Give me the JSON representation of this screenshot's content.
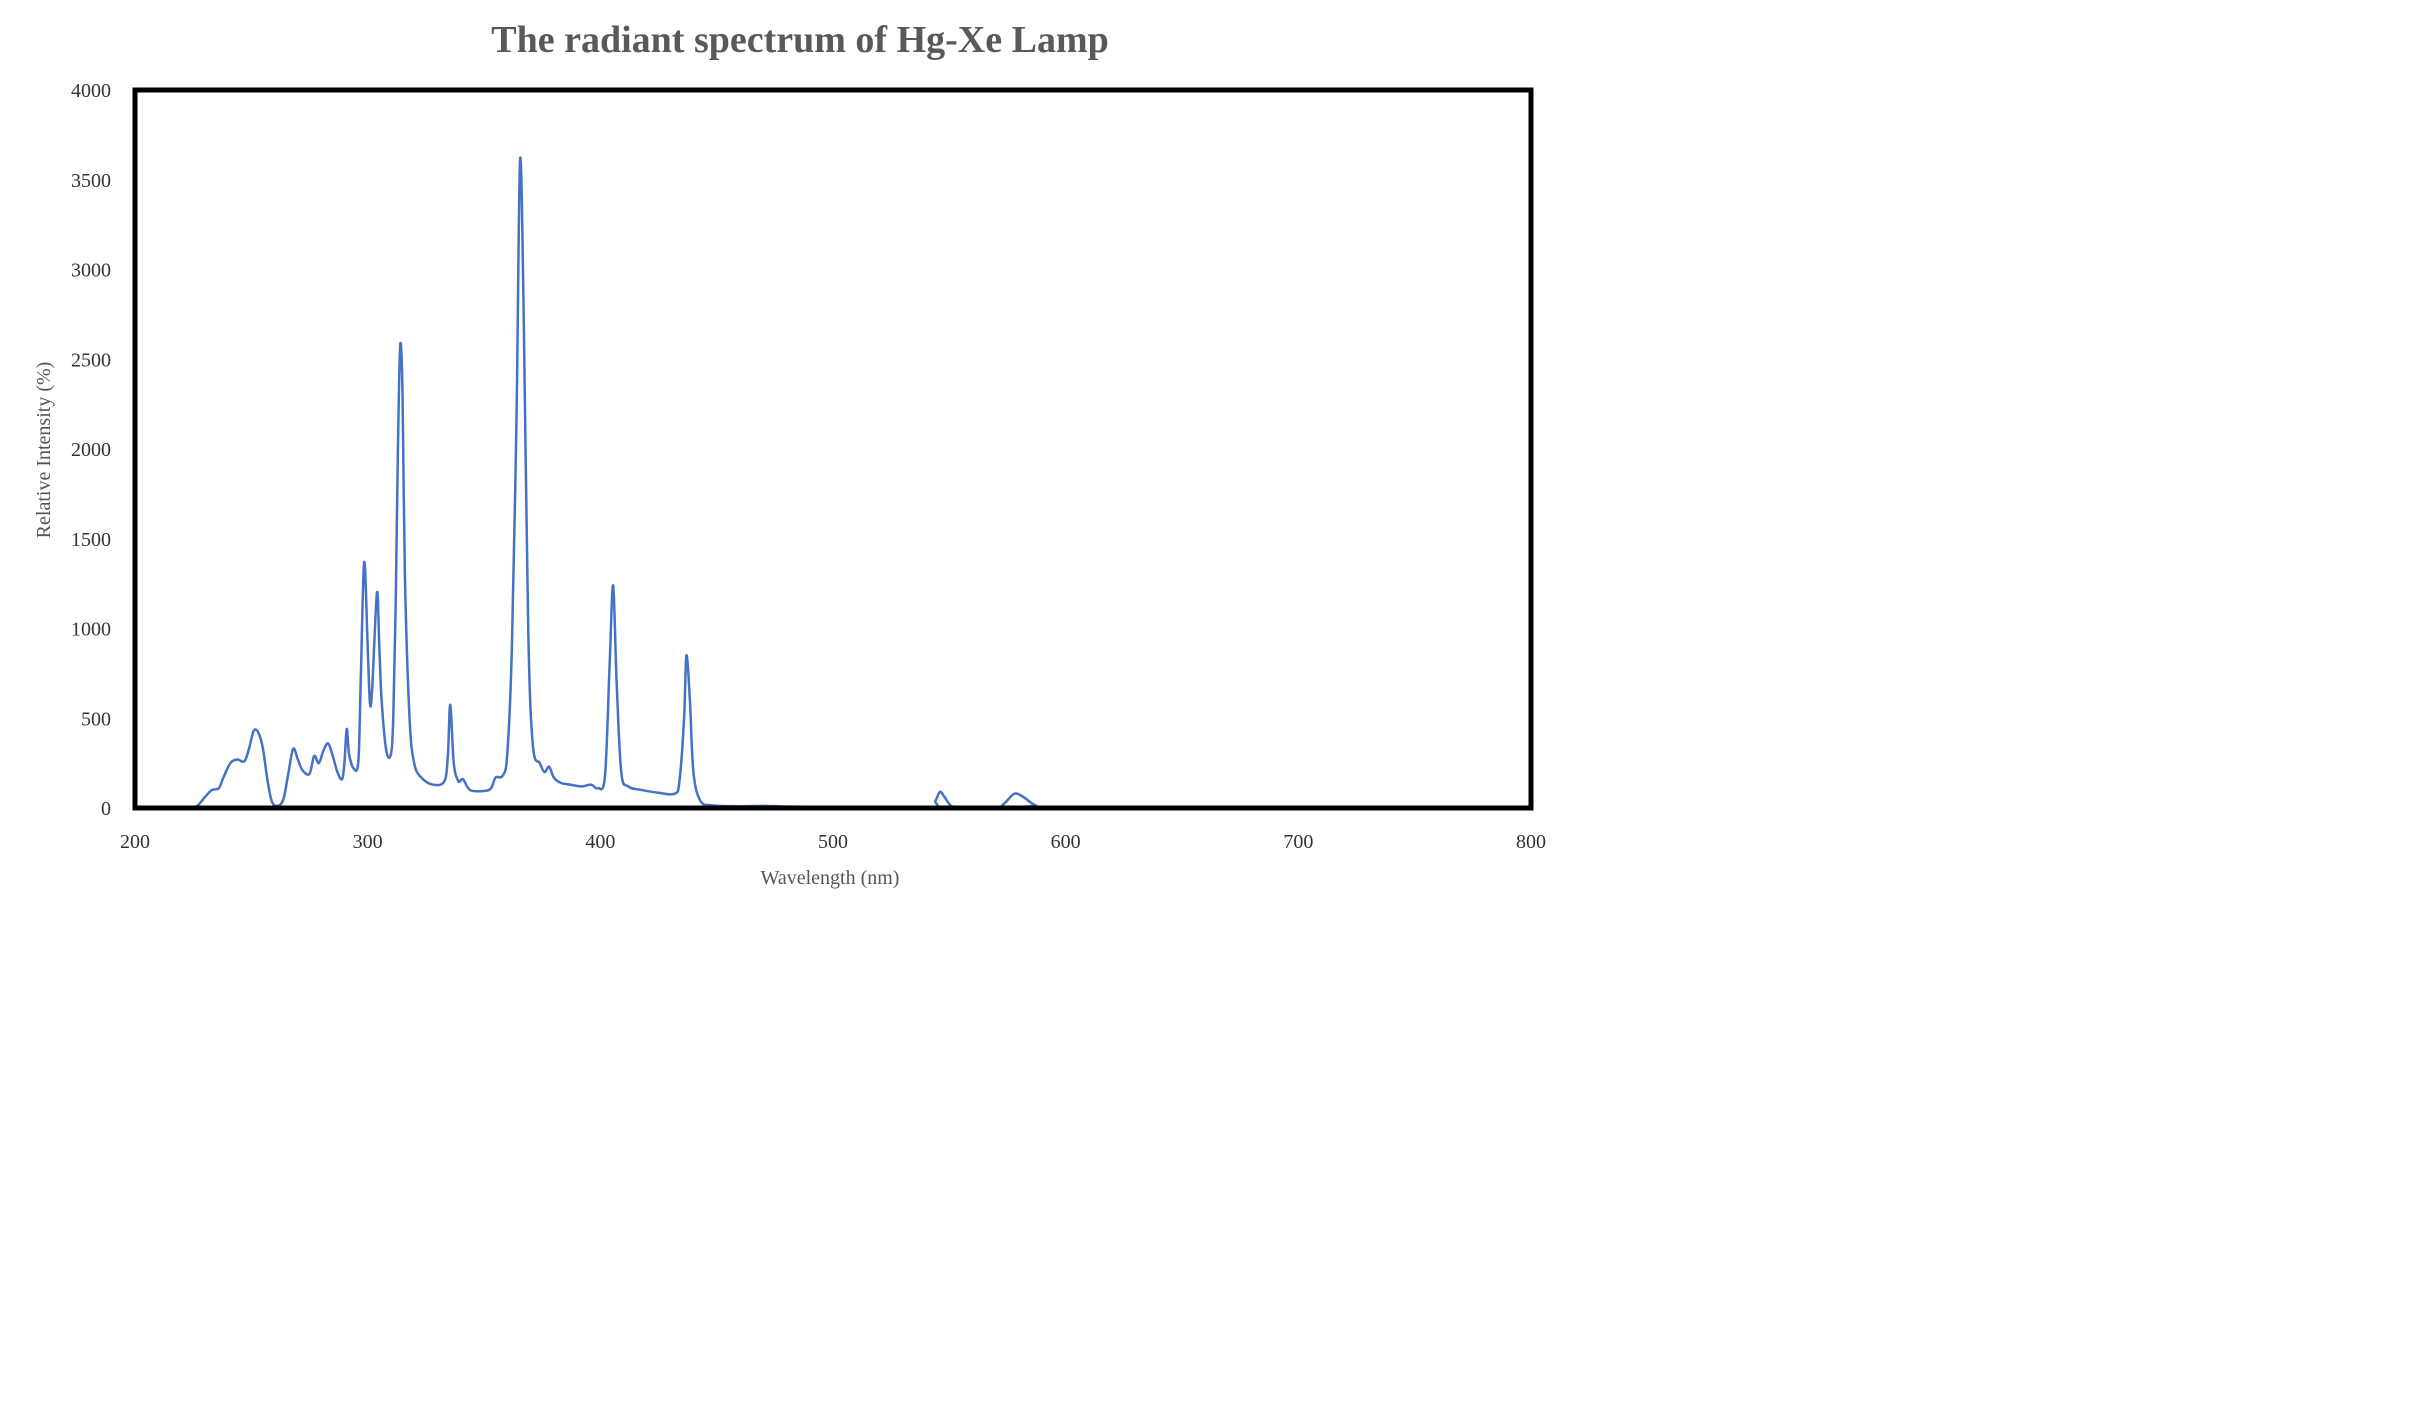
{
  "chart_data": {
    "type": "line",
    "title": "The radiant spectrum of Hg-Xe Lamp",
    "xlabel": "Wavelength (nm)",
    "ylabel": "Relative Intensity (%)",
    "xlim": [
      200,
      800
    ],
    "ylim": [
      0,
      4000
    ],
    "x_ticks": [
      "200",
      "300",
      "400",
      "500",
      "600",
      "700",
      "800"
    ],
    "y_ticks": [
      "0",
      "500",
      "1000",
      "1500",
      "2000",
      "2500",
      "3000",
      "3500",
      "4000"
    ],
    "grid": false,
    "legend": "none",
    "series_color": "#4472C4",
    "series": [
      {
        "points": [
          [
            200,
            0
          ],
          [
            220,
            0
          ],
          [
            226,
            5
          ],
          [
            230,
            60
          ],
          [
            233,
            100
          ],
          [
            236,
            110
          ],
          [
            238,
            170
          ],
          [
            241,
            250
          ],
          [
            244,
            270
          ],
          [
            247,
            260
          ],
          [
            249,
            330
          ],
          [
            251,
            430
          ],
          [
            253,
            420
          ],
          [
            255,
            330
          ],
          [
            257,
            150
          ],
          [
            259,
            30
          ],
          [
            262,
            15
          ],
          [
            264,
            60
          ],
          [
            266,
            200
          ],
          [
            268,
            330
          ],
          [
            270,
            270
          ],
          [
            272,
            210
          ],
          [
            275,
            190
          ],
          [
            277,
            290
          ],
          [
            279,
            250
          ],
          [
            281,
            320
          ],
          [
            283,
            360
          ],
          [
            285,
            290
          ],
          [
            287,
            200
          ],
          [
            289,
            160
          ],
          [
            290,
            250
          ],
          [
            291,
            440
          ],
          [
            292,
            300
          ],
          [
            294,
            220
          ],
          [
            296,
            260
          ],
          [
            297,
            700
          ],
          [
            298.5,
            1370
          ],
          [
            300,
            900
          ],
          [
            301,
            580
          ],
          [
            302,
            680
          ],
          [
            304,
            1200
          ],
          [
            305,
            900
          ],
          [
            306,
            600
          ],
          [
            308,
            320
          ],
          [
            310,
            300
          ],
          [
            311,
            500
          ],
          [
            312,
            1100
          ],
          [
            313,
            2000
          ],
          [
            314,
            2580
          ],
          [
            315,
            2300
          ],
          [
            316,
            1300
          ],
          [
            318,
            500
          ],
          [
            320,
            250
          ],
          [
            323,
            170
          ],
          [
            328,
            130
          ],
          [
            333,
            150
          ],
          [
            334.5,
            300
          ],
          [
            335.5,
            575
          ],
          [
            337,
            250
          ],
          [
            339,
            150
          ],
          [
            341,
            160
          ],
          [
            344,
            100
          ],
          [
            350,
            95
          ],
          [
            353,
            110
          ],
          [
            355,
            170
          ],
          [
            358,
            180
          ],
          [
            360,
            300
          ],
          [
            362,
            900
          ],
          [
            364,
            2200
          ],
          [
            365.5,
            3610
          ],
          [
            367,
            2800
          ],
          [
            369,
            1000
          ],
          [
            371,
            350
          ],
          [
            374,
            250
          ],
          [
            376,
            200
          ],
          [
            378,
            230
          ],
          [
            380,
            170
          ],
          [
            383,
            140
          ],
          [
            387,
            130
          ],
          [
            392,
            120
          ],
          [
            396,
            130
          ],
          [
            399,
            110
          ],
          [
            402,
            180
          ],
          [
            404,
            800
          ],
          [
            405.5,
            1240
          ],
          [
            407,
            700
          ],
          [
            409,
            200
          ],
          [
            412,
            120
          ],
          [
            418,
            100
          ],
          [
            425,
            85
          ],
          [
            432,
            80
          ],
          [
            434,
            150
          ],
          [
            436,
            500
          ],
          [
            437,
            850
          ],
          [
            438.5,
            600
          ],
          [
            440,
            200
          ],
          [
            443,
            40
          ],
          [
            448,
            15
          ],
          [
            460,
            10
          ],
          [
            470,
            12
          ],
          [
            480,
            8
          ],
          [
            495,
            5
          ],
          [
            500,
            0
          ],
          [
            541,
            0
          ],
          [
            544,
            40
          ],
          [
            546,
            90
          ],
          [
            548,
            60
          ],
          [
            551,
            10
          ],
          [
            556,
            0
          ],
          [
            570,
            0
          ],
          [
            574,
            30
          ],
          [
            578,
            80
          ],
          [
            582,
            60
          ],
          [
            587,
            15
          ],
          [
            595,
            0
          ],
          [
            800,
            0
          ]
        ]
      }
    ]
  }
}
